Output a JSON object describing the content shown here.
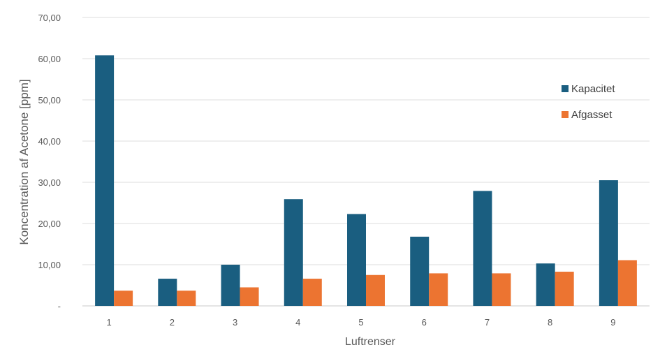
{
  "chart_data": {
    "type": "bar",
    "title": "",
    "xlabel": "Luftrenser",
    "ylabel": "Koncentration af Acetone [ppm]",
    "categories": [
      "1",
      "2",
      "3",
      "4",
      "5",
      "6",
      "7",
      "8",
      "9"
    ],
    "series": [
      {
        "name": "Kapacitet",
        "color": "#1a5e80",
        "values": [
          60.8,
          6.6,
          10.0,
          25.9,
          22.3,
          16.8,
          27.9,
          10.3,
          30.5
        ]
      },
      {
        "name": "Afgasset",
        "color": "#ec7431",
        "values": [
          3.7,
          3.7,
          4.5,
          6.6,
          7.5,
          7.9,
          7.9,
          8.3,
          11.1
        ]
      }
    ],
    "ylim": [
      0,
      70
    ],
    "yticks": [
      0,
      10,
      20,
      30,
      40,
      50,
      60,
      70
    ],
    "ytick_labels": [
      "-",
      "10,00",
      "20,00",
      "30,00",
      "40,00",
      "50,00",
      "60,00",
      "70,00"
    ],
    "grid": true,
    "legend_position": "right"
  }
}
